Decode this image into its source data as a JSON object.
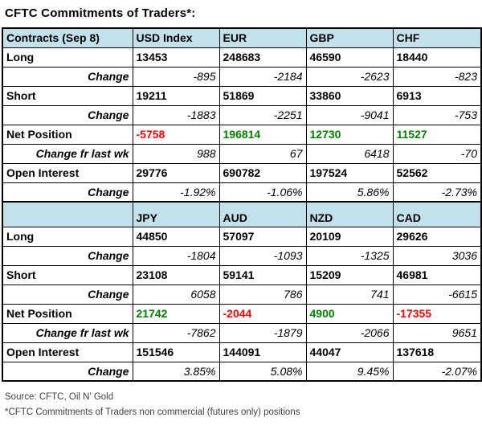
{
  "title": "CFTC Commitments of Traders*:",
  "colors": {
    "header_bg": "#c3e1eb",
    "label_bg": "#dbe4f2",
    "positive": "#008000",
    "negative": "#ff0000",
    "border": "#000000"
  },
  "chart_data": {
    "type": "table",
    "title": "CFTC Commitments of Traders*:",
    "sections": [
      {
        "header": [
          "Contracts (Sep 8)",
          "USD Index",
          "EUR",
          "GBP",
          "CHF"
        ],
        "rows": [
          {
            "label": "Long",
            "style": "metric",
            "values": [
              "13453",
              "248683",
              "46590",
              "18440"
            ]
          },
          {
            "label": "Change",
            "style": "change",
            "values": [
              "-895",
              "-2184",
              "-2623",
              "-823"
            ]
          },
          {
            "label": "Short",
            "style": "metric",
            "values": [
              "19211",
              "51869",
              "33860",
              "6913"
            ]
          },
          {
            "label": "Change",
            "style": "change",
            "values": [
              "-1883",
              "-2251",
              "-9041",
              "-753"
            ]
          },
          {
            "label": "Net Position",
            "style": "net",
            "values": [
              "-5758",
              "196814",
              "12730",
              "11527"
            ],
            "value_colors": [
              "negative",
              "positive",
              "positive",
              "positive"
            ]
          },
          {
            "label": "Change fr last wk",
            "style": "change",
            "values": [
              "988",
              "67",
              "6418",
              "-70"
            ]
          },
          {
            "label": "Open Interest",
            "style": "metric",
            "values": [
              "29776",
              "690782",
              "197524",
              "52562"
            ]
          },
          {
            "label": "Change",
            "style": "change",
            "values": [
              "-1.92%",
              "-1.06%",
              "5.86%",
              "-2.73%"
            ]
          }
        ]
      },
      {
        "header": [
          "",
          "JPY",
          "AUD",
          "NZD",
          "CAD"
        ],
        "rows": [
          {
            "label": "Long",
            "style": "metric",
            "values": [
              "44850",
              "57097",
              "20109",
              "29626"
            ]
          },
          {
            "label": "Change",
            "style": "change",
            "values": [
              "-1804",
              "-1093",
              "-1325",
              "3036"
            ]
          },
          {
            "label": "Short",
            "style": "metric",
            "values": [
              "23108",
              "59141",
              "15209",
              "46981"
            ]
          },
          {
            "label": "Change",
            "style": "change",
            "values": [
              "6058",
              "786",
              "741",
              "-6615"
            ]
          },
          {
            "label": "Net Position",
            "style": "net",
            "values": [
              "21742",
              "-2044",
              "4900",
              "-17355"
            ],
            "value_colors": [
              "positive",
              "negative",
              "positive",
              "negative"
            ]
          },
          {
            "label": "Change fr last wk",
            "style": "change",
            "values": [
              "-7862",
              "-1879",
              "-2066",
              "9651"
            ]
          },
          {
            "label": "Open Interest",
            "style": "metric",
            "values": [
              "151546",
              "144091",
              "44047",
              "137618"
            ]
          },
          {
            "label": "Change",
            "style": "change",
            "values": [
              "3.85%",
              "5.08%",
              "9.45%",
              "-2.07%"
            ]
          }
        ]
      }
    ]
  },
  "footer": {
    "source": "Source: CFTC, Oil N' Gold",
    "note": "*CFTC Commitments of Traders non commercial (futures only) positions"
  }
}
